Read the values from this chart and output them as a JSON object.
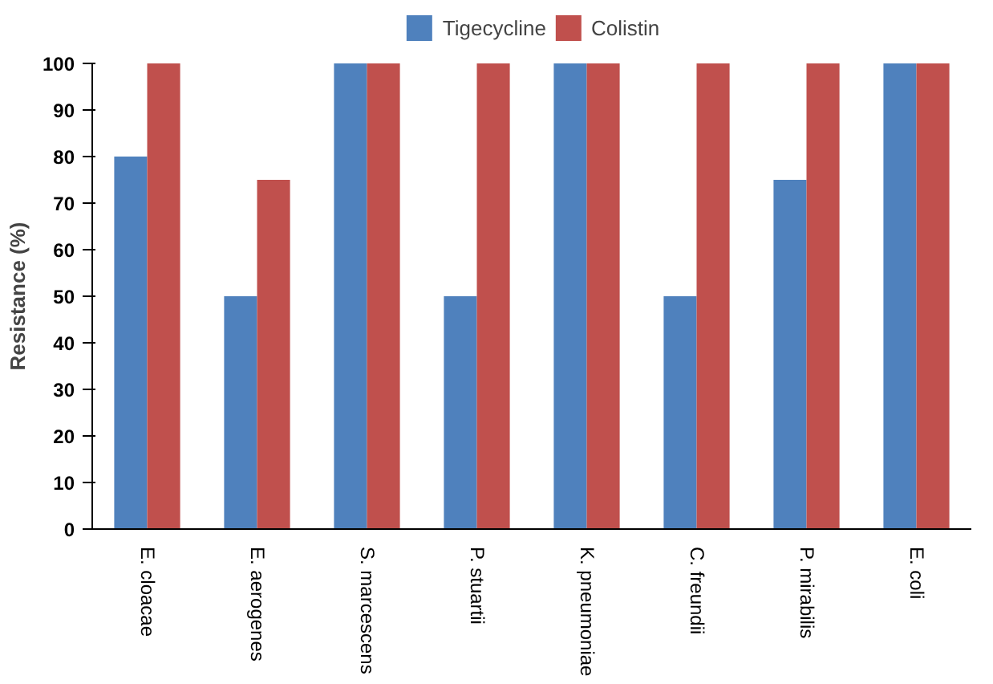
{
  "chart_data": {
    "type": "bar",
    "ylabel": "Resistance (%)",
    "categories": [
      "E. cloacae",
      "E. aerogenes",
      "S. marcescens",
      "P. stuartii",
      "K. pneumoniae",
      "C. freundii",
      "P. mirabilis",
      "E. coli"
    ],
    "series": [
      {
        "name": "Tigecycline",
        "color": "#4f81bd",
        "values": [
          80,
          50,
          100,
          50,
          100,
          50,
          75,
          100
        ]
      },
      {
        "name": "Colistin",
        "color": "#c0504d",
        "values": [
          100,
          75,
          100,
          100,
          100,
          100,
          100,
          100
        ]
      }
    ],
    "ylim": [
      0,
      100
    ],
    "yticks": [
      0,
      10,
      20,
      30,
      40,
      50,
      60,
      70,
      80,
      90,
      100
    ],
    "grid": false,
    "legend": "top"
  }
}
